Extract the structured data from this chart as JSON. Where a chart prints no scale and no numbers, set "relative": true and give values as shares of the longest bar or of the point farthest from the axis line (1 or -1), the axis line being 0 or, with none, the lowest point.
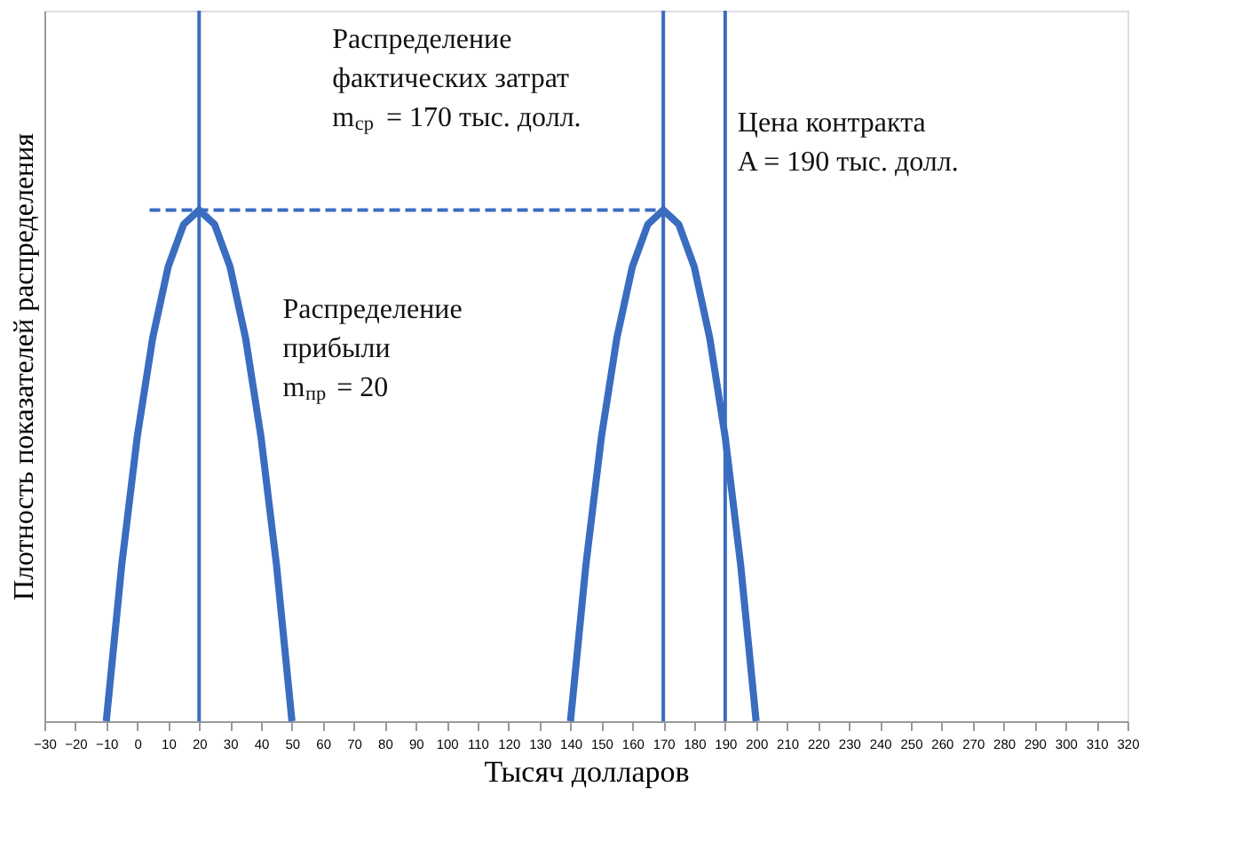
{
  "chart_data": {
    "type": "line",
    "relative": true,
    "xlabel": "Тысяч долларов",
    "ylabel": "Плотность показателей распределения",
    "xlim": [
      -30,
      320
    ],
    "xticks": [
      -30,
      -20,
      -10,
      0,
      10,
      20,
      30,
      40,
      50,
      60,
      70,
      80,
      90,
      100,
      110,
      120,
      130,
      140,
      150,
      160,
      170,
      180,
      190,
      200,
      210,
      220,
      230,
      240,
      250,
      260,
      270,
      280,
      290,
      300,
      310,
      320
    ],
    "grid": false,
    "marker": "none",
    "series": [
      {
        "color": "#3a6cc0",
        "line_style": "solid",
        "x": [
          -10,
          -5,
          0,
          5,
          10,
          15,
          20,
          25,
          30,
          35,
          40,
          45,
          50
        ],
        "values": [
          0,
          0.306,
          0.556,
          0.75,
          0.889,
          0.972,
          1,
          0.972,
          0.889,
          0.75,
          0.556,
          0.306,
          0
        ]
      },
      {
        "color": "#3a6cc0",
        "line_style": "solid",
        "x": [
          140,
          145,
          150,
          155,
          160,
          165,
          170,
          175,
          180,
          185,
          190,
          195,
          200
        ],
        "values": [
          0,
          0.306,
          0.556,
          0.75,
          0.889,
          0.972,
          1,
          0.972,
          0.889,
          0.75,
          0.556,
          0.306,
          0
        ]
      },
      {
        "color": "#3a6cc0",
        "line_style": "dashed",
        "x": [
          4,
          170
        ],
        "values": [
          1,
          1
        ]
      }
    ],
    "ref_lines": [
      {
        "axis": "x",
        "value": 20,
        "color": "#3a6cc0"
      },
      {
        "axis": "x",
        "value": 170,
        "color": "#3a6cc0"
      },
      {
        "axis": "x",
        "value": 190,
        "color": "#3a6cc0"
      }
    ],
    "annotations": [
      "Распределение\nфактических затрат\nm$_{ср}$ = 170 тыс. долл.",
      "Цена контракта\nA = 190 тыс. долл.",
      "Распределение\nприбыли\nm$_{пр}$ = 20"
    ]
  }
}
